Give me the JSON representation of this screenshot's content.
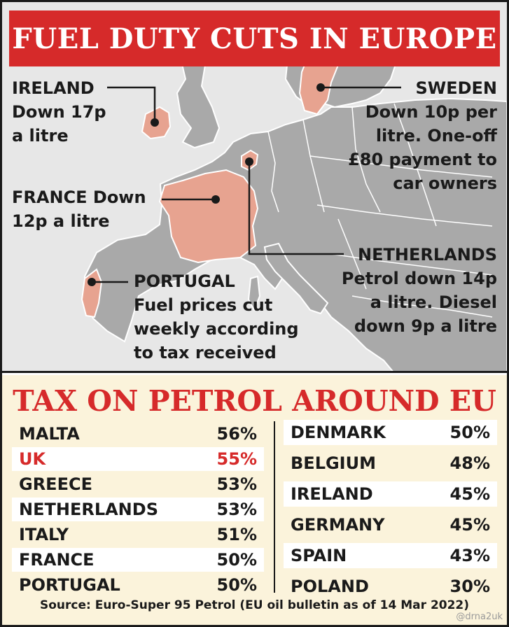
{
  "headline": "FUEL DUTY CUTS IN EUROPE",
  "colors": {
    "red": "#d62a2a",
    "highlight_country": "#e7a390",
    "land": "#a9a9a9",
    "sea": "#e7e7e7",
    "tax_panel_bg": "#fbf3db"
  },
  "callouts": {
    "ireland": {
      "lines": [
        "IRELAND",
        "Down 17p",
        "a litre"
      ]
    },
    "sweden": {
      "lines": [
        "SWEDEN",
        "Down 10p per",
        "litre. One-off",
        "£80 payment to",
        "car owners"
      ]
    },
    "france": {
      "lines": [
        "FRANCE Down",
        "12p a litre"
      ]
    },
    "netherlands": {
      "lines": [
        "NETHERLANDS",
        "Petrol down 14p",
        "a litre. Diesel",
        "down 9p a litre"
      ]
    },
    "portugal": {
      "lines": [
        "PORTUGAL",
        "Fuel prices cut",
        "weekly according",
        "to tax received"
      ]
    }
  },
  "tax": {
    "title": "TAX ON PETROL AROUND EU",
    "left": [
      {
        "country": "MALTA",
        "pct": "56%"
      },
      {
        "country": "UK",
        "pct": "55%"
      },
      {
        "country": "GREECE",
        "pct": "53%"
      },
      {
        "country": "NETHERLANDS",
        "pct": "53%"
      },
      {
        "country": "ITALY",
        "pct": "51%"
      },
      {
        "country": "FRANCE",
        "pct": "50%"
      },
      {
        "country": "PORTUGAL",
        "pct": "50%"
      }
    ],
    "right": [
      {
        "country": "DENMARK",
        "pct": "50%"
      },
      {
        "country": "BELGIUM",
        "pct": "48%"
      },
      {
        "country": "IRELAND",
        "pct": "45%"
      },
      {
        "country": "GERMANY",
        "pct": "45%"
      },
      {
        "country": "SPAIN",
        "pct": "43%"
      },
      {
        "country": "POLAND",
        "pct": "30%"
      }
    ],
    "source": "Source: Euro-Super 95 Petrol (EU oil bulletin as of 14 Mar 2022)"
  },
  "watermark": "@drna2uk"
}
